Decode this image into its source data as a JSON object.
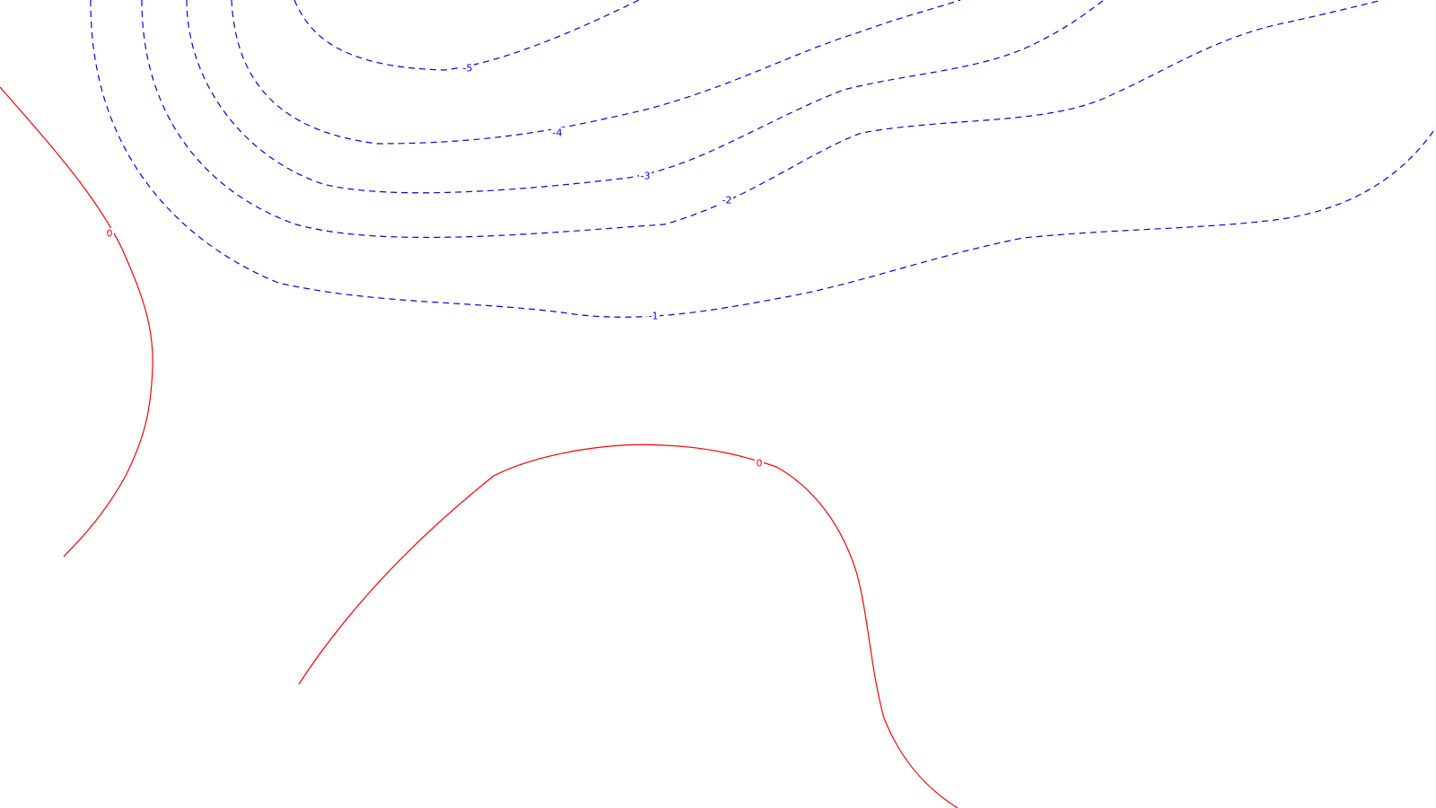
{
  "chart_data": {
    "type": "contour",
    "title": "",
    "xlabel": "",
    "ylabel": "",
    "grid": false,
    "legend": "none",
    "colors": {
      "positive": "#ff0000",
      "negative": "#0000ff",
      "background": "#ffffff"
    },
    "line_styles": {
      "positive": "solid",
      "negative": "dashed"
    },
    "levels": [
      {
        "id": "neg5",
        "value": -5,
        "label": "-5"
      },
      {
        "id": "neg4",
        "value": -4,
        "label": "-4"
      },
      {
        "id": "neg3",
        "value": -3,
        "label": "-3"
      },
      {
        "id": "neg2",
        "value": -2,
        "label": "-2"
      },
      {
        "id": "neg1",
        "value": -1,
        "label": "-1"
      },
      {
        "id": "zero-left",
        "value": 0,
        "label": "0"
      },
      {
        "id": "zero-center",
        "value": 0,
        "label": "0"
      }
    ]
  }
}
